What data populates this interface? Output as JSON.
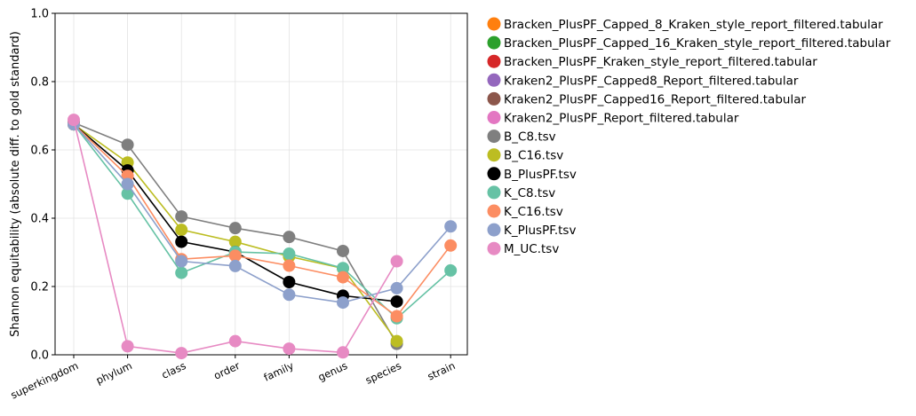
{
  "chart_data": {
    "type": "line",
    "title": "",
    "xlabel": "",
    "ylabel": "Shannon equitability (absolute diff. to gold standard)",
    "ylim": [
      0,
      1
    ],
    "yticks": [
      0,
      0.2,
      0.4,
      0.6,
      0.8,
      1.0
    ],
    "ytick_labels": [
      "0.0",
      "0.2",
      "0.4",
      "0.6",
      "0.8",
      "1.0"
    ],
    "grid": true,
    "legend_position": "outside-right",
    "categories": [
      "superkingdom",
      "phylum",
      "class",
      "order",
      "family",
      "genus",
      "species",
      "strain"
    ],
    "series": [
      {
        "name": "Bracken_PlusPF_Capped_8_Kraken_style_report_filtered.tabular",
        "color": "#ff7f0e",
        "values": [
          null,
          null,
          null,
          null,
          null,
          null,
          null,
          null
        ]
      },
      {
        "name": "Bracken_PlusPF_Capped_16_Kraken_style_report_filtered.tabular",
        "color": "#2ca02c",
        "values": [
          null,
          null,
          null,
          null,
          null,
          null,
          null,
          null
        ]
      },
      {
        "name": "Bracken_PlusPF_Kraken_style_report_filtered.tabular",
        "color": "#d62728",
        "values": [
          null,
          null,
          null,
          null,
          null,
          null,
          null,
          null
        ]
      },
      {
        "name": "Kraken2_PlusPF_Capped8_Report_filtered.tabular",
        "color": "#9467bd",
        "values": [
          null,
          null,
          null,
          null,
          null,
          null,
          null,
          null
        ]
      },
      {
        "name": "Kraken2_PlusPF_Capped16_Report_filtered.tabular",
        "color": "#8c564b",
        "values": [
          null,
          null,
          null,
          null,
          null,
          null,
          null,
          null
        ]
      },
      {
        "name": "Kraken2_PlusPF_Report_filtered.tabular",
        "color": "#e377c2",
        "values": [
          null,
          null,
          null,
          null,
          null,
          null,
          null,
          null
        ]
      },
      {
        "name": "B_C8.tsv",
        "color": "#7f7f7f",
        "values": [
          0.68,
          0.615,
          0.405,
          0.371,
          0.345,
          0.304,
          0.032,
          null
        ]
      },
      {
        "name": "B_C16.tsv",
        "color": "#bcbd22",
        "values": [
          0.675,
          0.563,
          0.366,
          0.331,
          0.288,
          0.253,
          0.04,
          null
        ]
      },
      {
        "name": "B_PlusPF.tsv",
        "color": "#000000",
        "values": [
          0.675,
          0.54,
          0.331,
          0.301,
          0.213,
          0.173,
          0.156,
          null
        ]
      },
      {
        "name": "K_C8.tsv",
        "color": "#66c2a5",
        "values": [
          0.675,
          0.472,
          0.24,
          0.301,
          0.296,
          0.254,
          0.107,
          0.247
        ]
      },
      {
        "name": "K_C16.tsv",
        "color": "#fc8d62",
        "values": [
          0.675,
          0.524,
          0.28,
          0.29,
          0.261,
          0.227,
          0.113,
          0.32
        ]
      },
      {
        "name": "K_PlusPF.tsv",
        "color": "#8da0cb",
        "values": [
          0.675,
          0.5,
          0.274,
          0.26,
          0.176,
          0.153,
          0.195,
          0.376
        ]
      },
      {
        "name": "M_UC.tsv",
        "color": "#e78ac3",
        "values": [
          0.688,
          0.025,
          0.005,
          0.04,
          0.018,
          0.007,
          0.274,
          null
        ]
      }
    ]
  }
}
